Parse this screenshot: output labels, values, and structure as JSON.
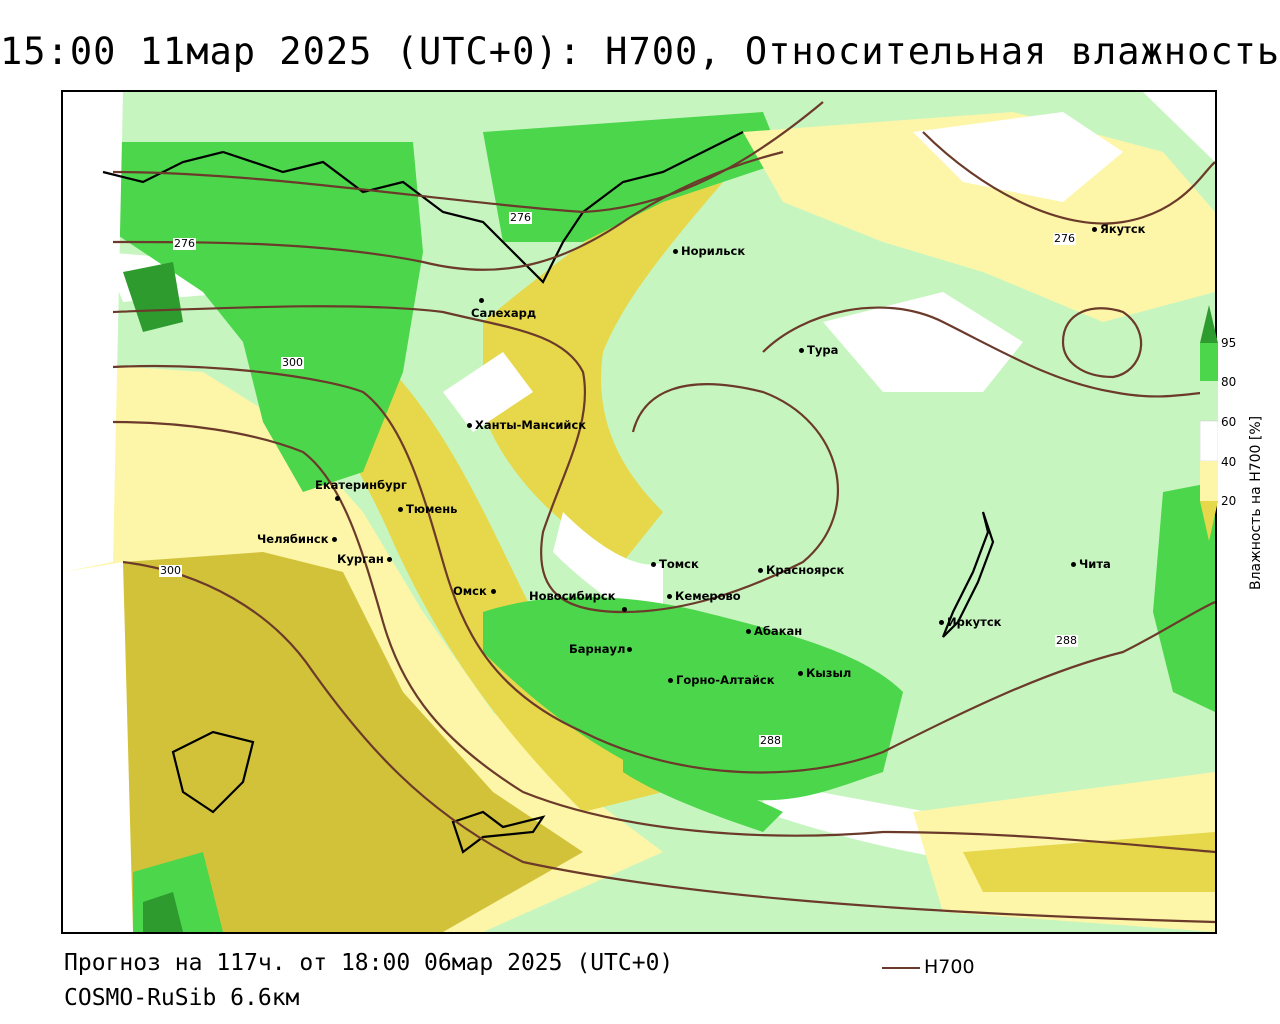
{
  "title": "15:00 11мар 2025 (UTC+0): H700, Относительная влажность",
  "footer": {
    "forecast": "Прогноз на 117ч. от 18:00 06мар 2025 (UTC+0)",
    "model": "COSMO-RuSib 6.6км",
    "legend_line_label": "H700"
  },
  "colorbar": {
    "title": "Влажность на H700 [%]",
    "ticks": [
      "95",
      "80",
      "60",
      "40",
      "20"
    ],
    "colors": {
      "dark_green": "#2e9b2e",
      "green": "#4cd64c",
      "light_green": "#c7f5c0",
      "white": "#ffffff",
      "light_yellow": "#fdf6a8",
      "yellow": "#e6d84a",
      "dark_yellow": "#d2c23a"
    }
  },
  "contour_color": "#6b3a2a",
  "contour_labels": [
    {
      "label": "276"
    },
    {
      "label": "276"
    },
    {
      "label": "276"
    },
    {
      "label": "300"
    },
    {
      "label": "300"
    },
    {
      "label": "288"
    },
    {
      "label": "288"
    }
  ],
  "cities": [
    {
      "name": "Норильск"
    },
    {
      "name": "Якутск"
    },
    {
      "name": "Салехард"
    },
    {
      "name": "Тура"
    },
    {
      "name": "Ханты-Мансийск"
    },
    {
      "name": "Екатеринбург"
    },
    {
      "name": "Тюмень"
    },
    {
      "name": "Челябинск"
    },
    {
      "name": "Курган"
    },
    {
      "name": "Омск"
    },
    {
      "name": "Новосибирск"
    },
    {
      "name": "Томск"
    },
    {
      "name": "Красноярск"
    },
    {
      "name": "Кемерово"
    },
    {
      "name": "Абакан"
    },
    {
      "name": "Барнаул"
    },
    {
      "name": "Горно-Алтайск"
    },
    {
      "name": "Кызыл"
    },
    {
      "name": "Иркутск"
    },
    {
      "name": "Чита"
    }
  ]
}
